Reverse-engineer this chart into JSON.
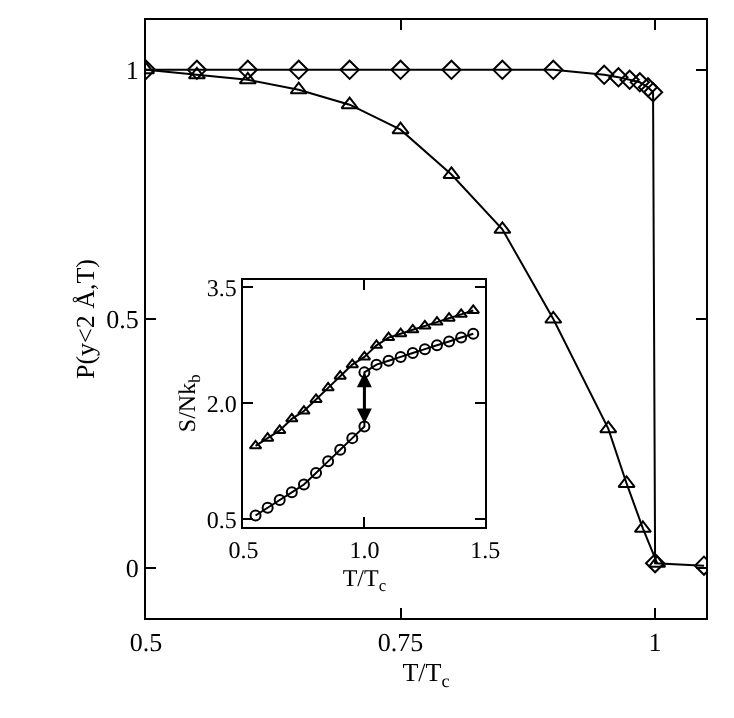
{
  "chart_data": [
    {
      "type": "line",
      "xlabel": "T/T$_{c}$",
      "ylabel": "P(y<2 Å,T)",
      "xlim": [
        0.5,
        1.05
      ],
      "ylim": [
        -0.1,
        1.1
      ],
      "xticks": [
        0.5,
        0.75,
        1
      ],
      "yticks": [
        0,
        0.5,
        1
      ],
      "series": [
        {
          "color": "#000000",
          "marker": "diamond",
          "x": [
            0.5,
            0.55,
            0.6,
            0.65,
            0.7,
            0.75,
            0.8,
            0.85,
            0.9,
            0.95,
            0.964,
            0.975,
            0.985,
            0.993,
            0.998,
            1.0,
            1.048
          ],
          "values": [
            1.0,
            1.0,
            1.0,
            1.0,
            1.0,
            1.0,
            1.0,
            1.0,
            1.0,
            0.99,
            0.985,
            0.98,
            0.975,
            0.965,
            0.955,
            0.01,
            0.005
          ]
        },
        {
          "color": "#000000",
          "marker": "triangle",
          "x": [
            0.5,
            0.55,
            0.6,
            0.65,
            0.7,
            0.75,
            0.8,
            0.85,
            0.9,
            0.954,
            0.972,
            0.988,
            1.002
          ],
          "values": [
            1.0,
            0.99,
            0.98,
            0.96,
            0.93,
            0.88,
            0.79,
            0.68,
            0.5,
            0.28,
            0.17,
            0.08,
            0.01
          ]
        }
      ]
    },
    {
      "type": "line",
      "xlabel": "T/T$_{c}$",
      "ylabel": "S/Nk$_{b}$",
      "xlim": [
        0.5,
        1.5
      ],
      "ylim": [
        0.4,
        3.6
      ],
      "xticks": [
        0.5,
        {
          "value": 1.0,
          "label": "1.0"
        },
        1.5
      ],
      "yticks": [
        0.5,
        {
          "value": 2.0,
          "label": "2.0"
        },
        3.5
      ],
      "series": [
        {
          "color": "#000000",
          "marker": "triangle",
          "x": [
            0.55,
            0.6,
            0.65,
            0.7,
            0.75,
            0.8,
            0.85,
            0.9,
            0.95,
            1.0,
            1.05,
            1.1,
            1.15,
            1.2,
            1.25,
            1.3,
            1.35,
            1.4,
            1.45
          ],
          "values": [
            1.45,
            1.55,
            1.65,
            1.8,
            1.9,
            2.05,
            2.2,
            2.35,
            2.5,
            2.6,
            2.75,
            2.85,
            2.9,
            2.95,
            3.0,
            3.05,
            3.1,
            3.15,
            3.2
          ]
        },
        {
          "color": "#000000",
          "marker": "circle",
          "x": [
            0.55,
            0.6,
            0.65,
            0.7,
            0.75,
            0.8,
            0.85,
            0.9,
            0.95,
            1.0,
            1.0,
            1.05,
            1.1,
            1.15,
            1.2,
            1.25,
            1.3,
            1.35,
            1.4,
            1.45
          ],
          "values": [
            0.55,
            0.65,
            0.75,
            0.85,
            0.95,
            1.1,
            1.25,
            1.4,
            1.55,
            1.7,
            2.4,
            2.5,
            2.55,
            2.6,
            2.65,
            2.7,
            2.75,
            2.8,
            2.85,
            2.9
          ]
        }
      ]
    }
  ]
}
